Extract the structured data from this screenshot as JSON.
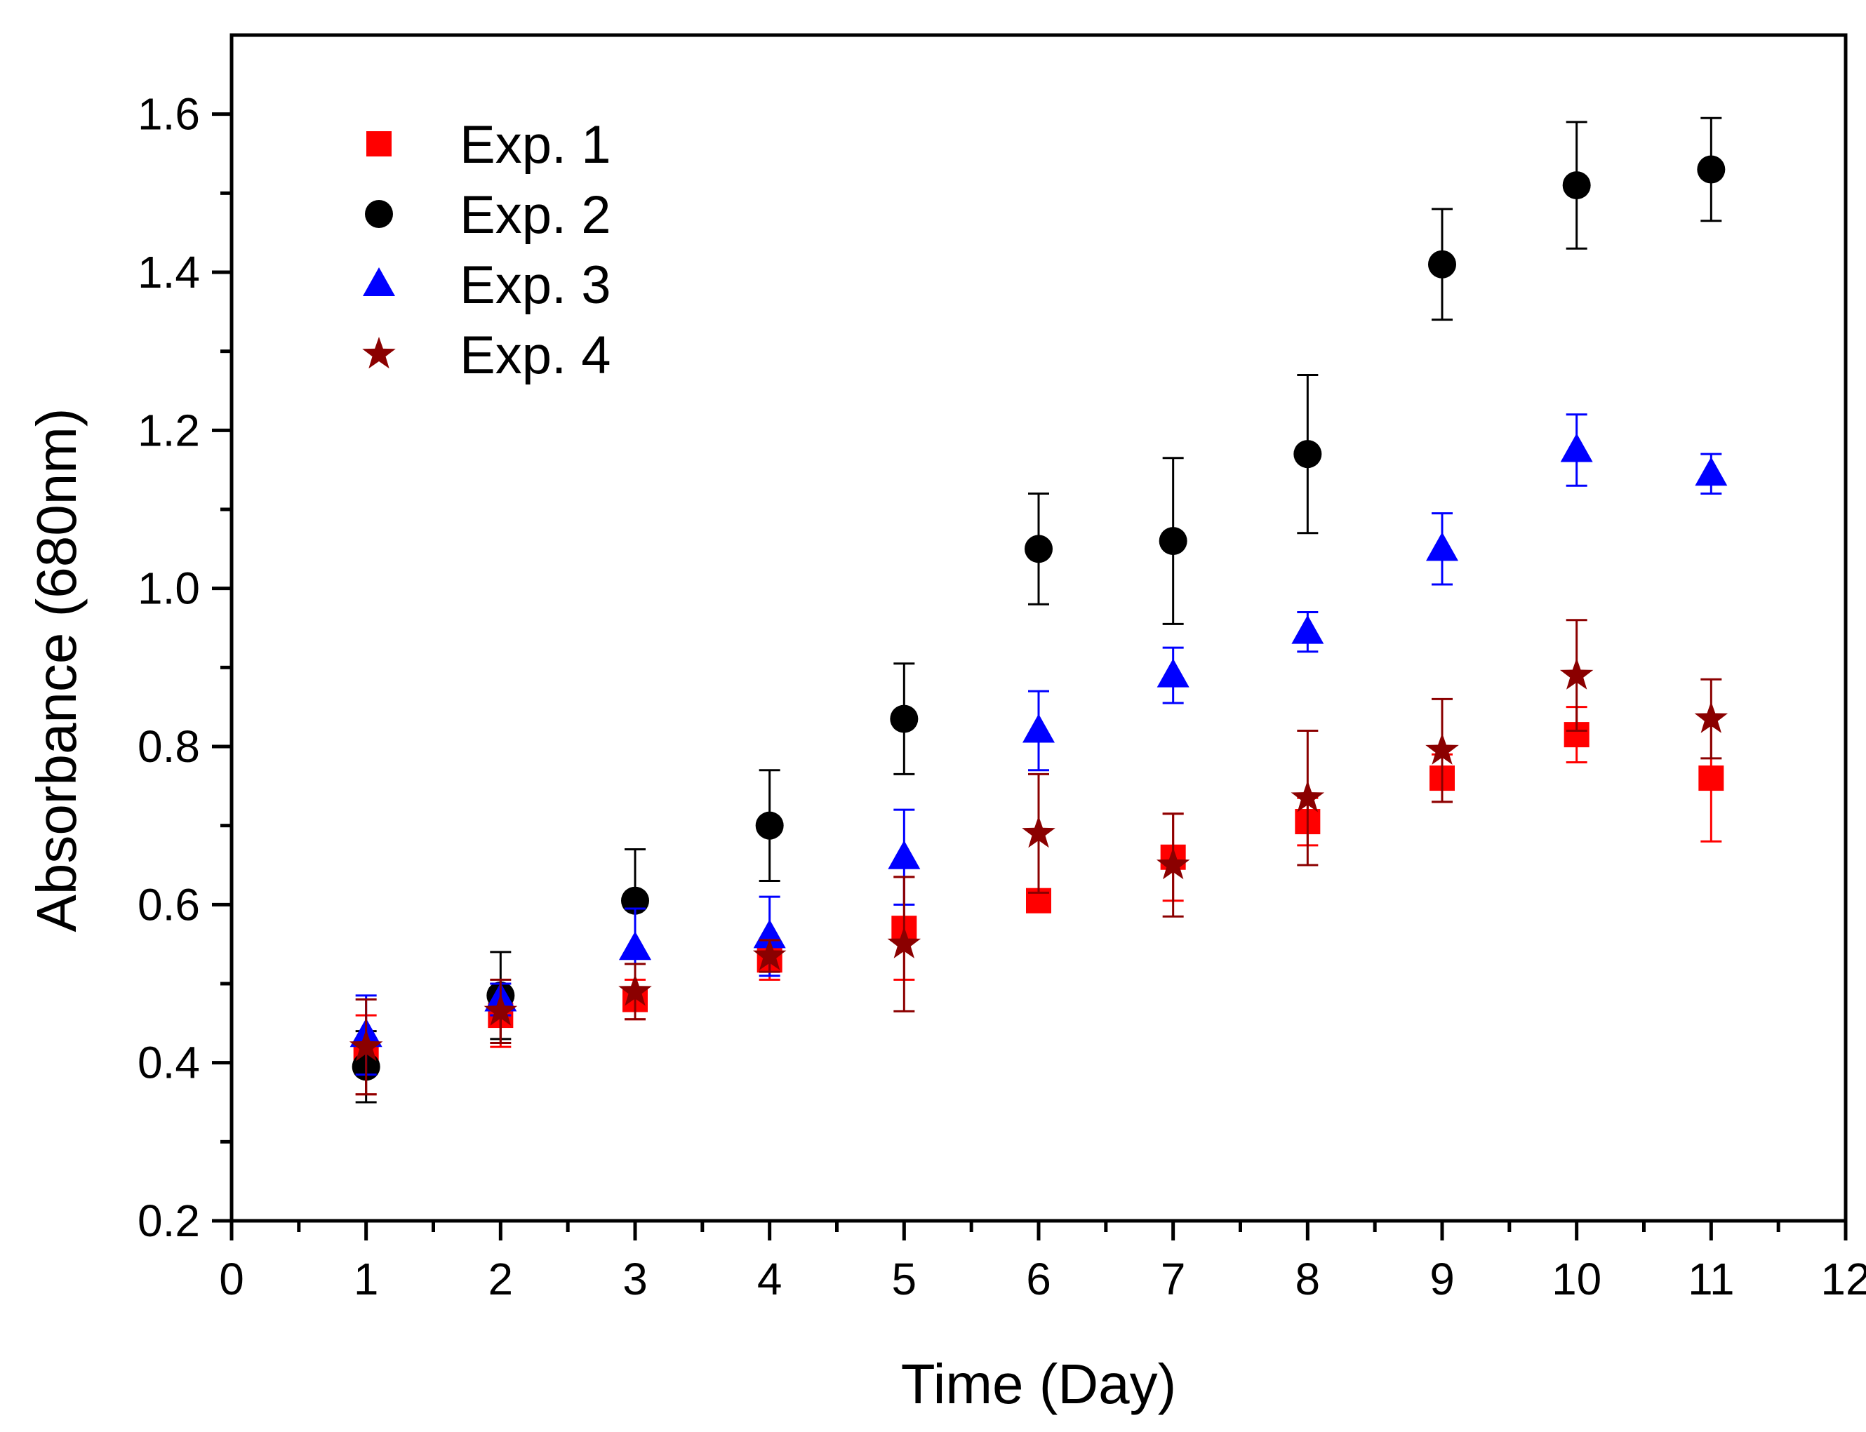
{
  "chart_data": {
    "type": "scatter",
    "title": "",
    "xlabel": "Time (Day)",
    "ylabel": "Absorbance (680nm)",
    "xlim": [
      0,
      12
    ],
    "ylim": [
      0.2,
      1.7
    ],
    "x_ticks": [
      "0",
      "1",
      "2",
      "3",
      "4",
      "5",
      "6",
      "7",
      "8",
      "9",
      "10",
      "11",
      "12"
    ],
    "y_ticks": [
      "0.2",
      "0.4",
      "0.6",
      "0.8",
      "1.0",
      "1.2",
      "1.4",
      "1.6"
    ],
    "grid": false,
    "legend_position": "top-left",
    "error_bars": true,
    "x": [
      1,
      2,
      3,
      4,
      5,
      6,
      7,
      8,
      9,
      10,
      11
    ],
    "series": [
      {
        "name": "Exp. 1",
        "color": "#ff0000",
        "marker": "square",
        "values": [
          0.41,
          0.46,
          0.48,
          0.53,
          0.57,
          0.605,
          0.66,
          0.705,
          0.76,
          0.815,
          0.76
        ],
        "errors": [
          0.05,
          0.04,
          0.025,
          0.025,
          0.065,
          0.0,
          0.055,
          0.03,
          0.03,
          0.035,
          0.08
        ]
      },
      {
        "name": "Exp. 2",
        "color": "#000000",
        "marker": "circle",
        "values": [
          0.395,
          0.485,
          0.605,
          0.7,
          0.835,
          1.05,
          1.06,
          1.17,
          1.41,
          1.51,
          1.53
        ],
        "errors": [
          0.045,
          0.055,
          0.065,
          0.07,
          0.07,
          0.07,
          0.105,
          0.1,
          0.07,
          0.08,
          0.065
        ]
      },
      {
        "name": "Exp. 3",
        "color": "#0000ff",
        "marker": "triangle",
        "values": [
          0.435,
          0.48,
          0.545,
          0.56,
          0.66,
          0.82,
          0.89,
          0.945,
          1.05,
          1.175,
          1.145
        ],
        "errors": [
          0.05,
          0.02,
          0.05,
          0.05,
          0.06,
          0.05,
          0.035,
          0.025,
          0.045,
          0.045,
          0.025
        ]
      },
      {
        "name": "Exp. 4",
        "color": "#8b0000",
        "marker": "star",
        "values": [
          0.42,
          0.465,
          0.49,
          0.535,
          0.55,
          0.69,
          0.65,
          0.735,
          0.795,
          0.89,
          0.835
        ],
        "errors": [
          0.06,
          0.04,
          0.035,
          0.02,
          0.085,
          0.075,
          0.065,
          0.085,
          0.065,
          0.07,
          0.05
        ]
      }
    ]
  }
}
